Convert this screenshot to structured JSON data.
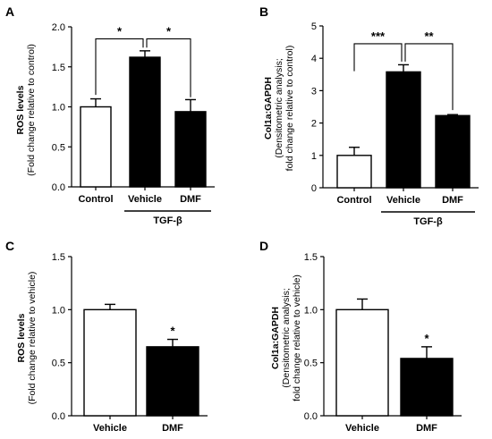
{
  "figure": {
    "bg": "#ffffff"
  },
  "chart_data": [
    {
      "id": "A",
      "type": "bar",
      "panel_label": "A",
      "categories": [
        "Control",
        "Vehicle",
        "DMF"
      ],
      "values": [
        1.0,
        1.62,
        0.94
      ],
      "errors": [
        0.1,
        0.08,
        0.15
      ],
      "fills": [
        "#ffffff",
        "#000000",
        "#000000"
      ],
      "ylabel": [
        "ROS levels",
        "(Fold change relative to control)"
      ],
      "ylim": [
        0,
        2.0
      ],
      "yticks": [
        0,
        0.5,
        1.0,
        1.5,
        2.0
      ],
      "ytick_labels": [
        "0.0",
        "0.5",
        "1.0",
        "1.5",
        "2.0"
      ],
      "group_label": {
        "text": "TGF-β",
        "from": 1,
        "to": 2
      },
      "significance": [
        {
          "from": 0,
          "to": 1,
          "label": "*",
          "y": 1.85,
          "drop_left": 1.15,
          "drop_right": 1.74
        },
        {
          "from": 1,
          "to": 2,
          "label": "*",
          "y": 1.85,
          "drop_left": 1.74,
          "drop_right": 1.12
        }
      ],
      "grid": false
    },
    {
      "id": "B",
      "type": "bar",
      "panel_label": "B",
      "categories": [
        "Control",
        "Vehicle",
        "DMF"
      ],
      "values": [
        1.0,
        3.58,
        2.23
      ],
      "errors": [
        0.25,
        0.22,
        0.03
      ],
      "fills": [
        "#ffffff",
        "#000000",
        "#000000"
      ],
      "ylabel": [
        "Col1a:GAPDH",
        "(Densitometric analysis;",
        "fold change relative to control)"
      ],
      "ylim": [
        0,
        5
      ],
      "yticks": [
        0,
        1,
        2,
        3,
        4,
        5
      ],
      "ytick_labels": [
        "0",
        "1",
        "2",
        "3",
        "4",
        "5"
      ],
      "group_label": {
        "text": "TGF-β",
        "from": 1,
        "to": 2
      },
      "significance": [
        {
          "from": 0,
          "to": 1,
          "label": "***",
          "y": 4.45,
          "drop_left": 3.6,
          "drop_right": 3.9
        },
        {
          "from": 1,
          "to": 2,
          "label": "**",
          "y": 4.45,
          "drop_left": 3.9,
          "drop_right": 2.4
        }
      ],
      "grid": false
    },
    {
      "id": "C",
      "type": "bar",
      "panel_label": "C",
      "categories": [
        "Vehicle",
        "DMF"
      ],
      "values": [
        1.0,
        0.65
      ],
      "errors": [
        0.05,
        0.07
      ],
      "fills": [
        "#ffffff",
        "#000000"
      ],
      "ylabel": [
        "ROS levels",
        "(Fold change relative to vehicle)"
      ],
      "ylim": [
        0,
        1.5
      ],
      "yticks": [
        0,
        0.5,
        1.0,
        1.5
      ],
      "ytick_labels": [
        "0.0",
        "0.5",
        "1.0",
        "1.5"
      ],
      "stars": [
        {
          "index": 1,
          "label": "*"
        }
      ],
      "grid": false
    },
    {
      "id": "D",
      "type": "bar",
      "panel_label": "D",
      "categories": [
        "Vehicle",
        "DMF"
      ],
      "values": [
        1.0,
        0.54
      ],
      "errors": [
        0.1,
        0.11
      ],
      "fills": [
        "#ffffff",
        "#000000"
      ],
      "ylabel": [
        "Col1a:GAPDH",
        "(Densitometric analysis;",
        "fold change relative to vehicle)"
      ],
      "ylim": [
        0,
        1.5
      ],
      "yticks": [
        0,
        0.5,
        1.0,
        1.5
      ],
      "ytick_labels": [
        "0.0",
        "0.5",
        "1.0",
        "1.5"
      ],
      "stars": [
        {
          "index": 1,
          "label": "*"
        }
      ],
      "grid": false
    }
  ]
}
